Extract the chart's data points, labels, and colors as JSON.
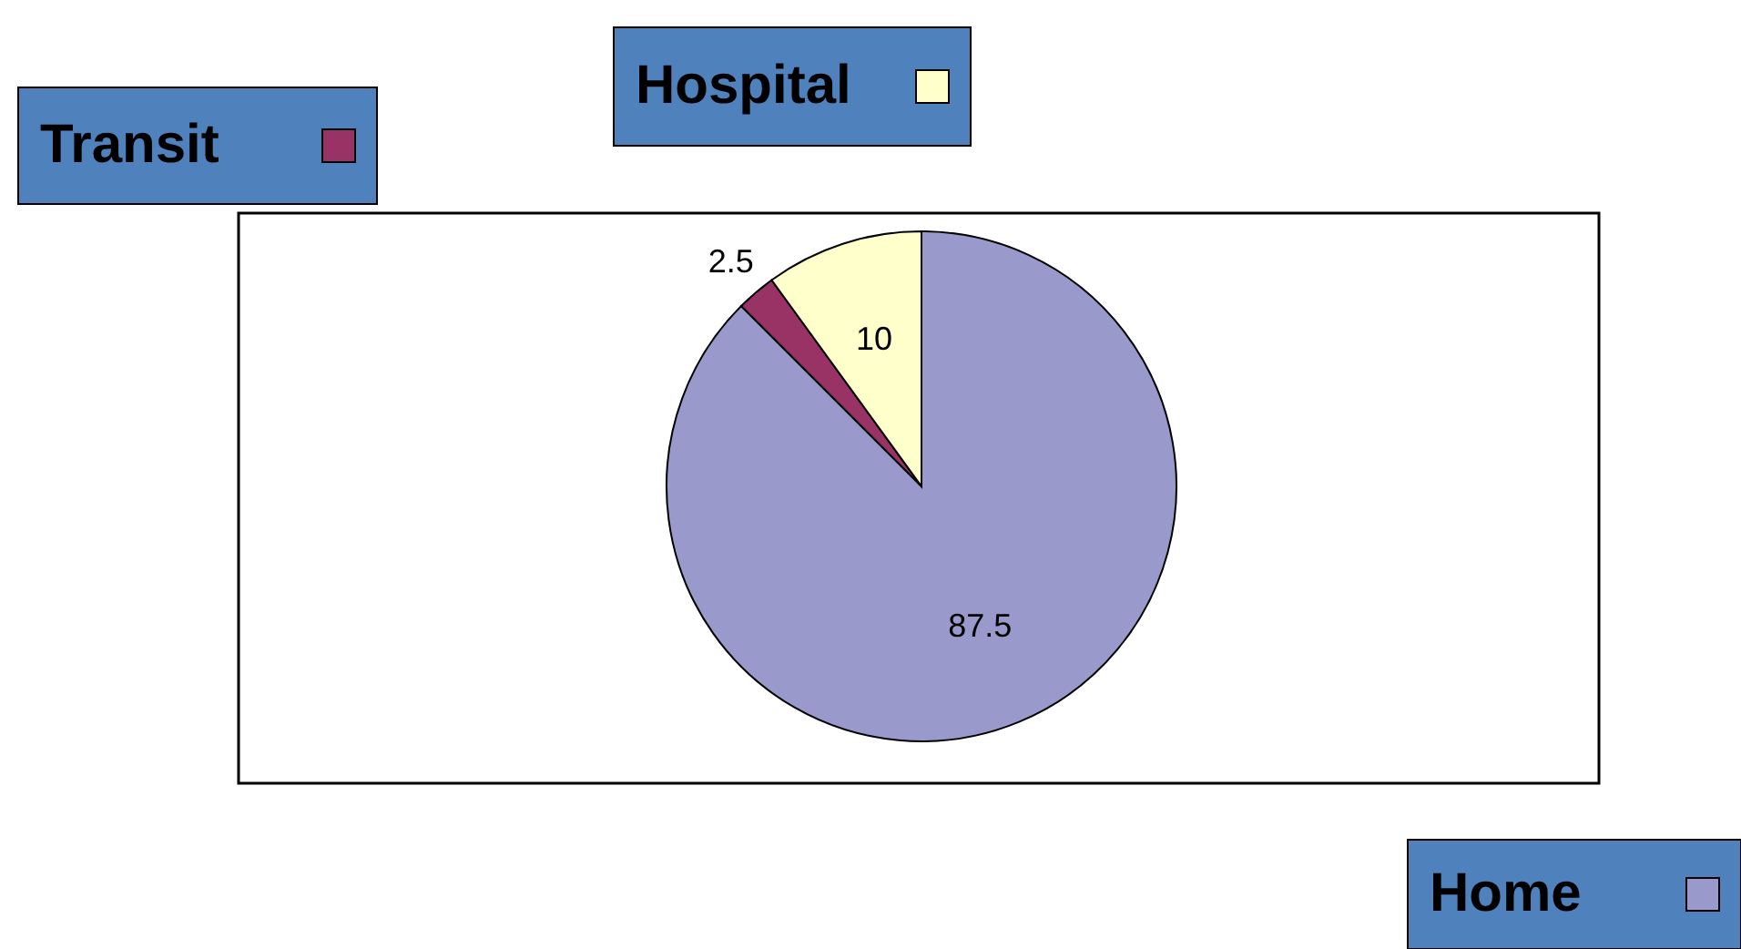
{
  "chart_data": {
    "type": "pie",
    "categories": [
      "Home",
      "Transit",
      "Hospital"
    ],
    "values": [
      87.5,
      2.5,
      10
    ],
    "colors": [
      "#9999cc",
      "#993366",
      "#ffffcc"
    ],
    "data_labels": true,
    "legend": "bottom left"
  }
}
